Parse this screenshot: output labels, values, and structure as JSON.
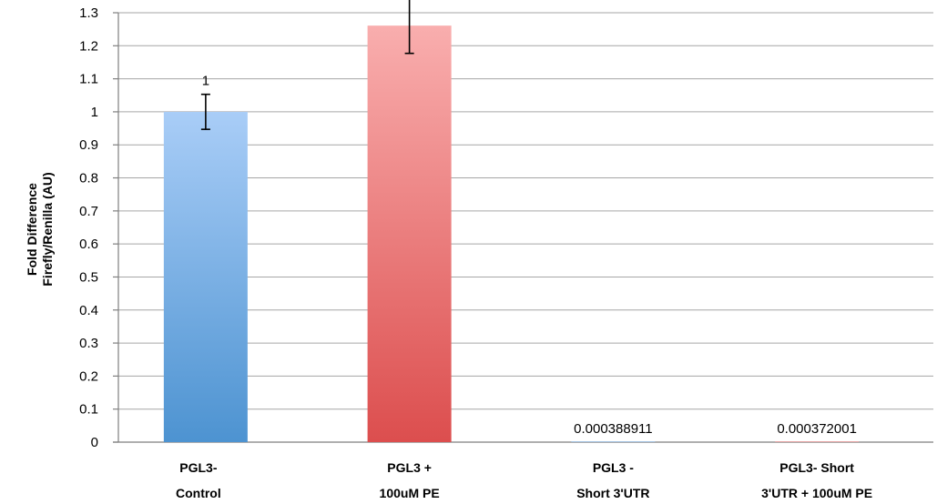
{
  "chart_data": {
    "type": "bar",
    "categories": [
      [
        "PGL3-",
        "Control"
      ],
      [
        "PGL3 +",
        "100uM PE"
      ],
      [
        "PGL3 -",
        "Short 3'UTR"
      ],
      [
        "PGL3- Short",
        "3'UTR + 100uM PE"
      ]
    ],
    "values": [
      1,
      1.261000418,
      0.000388911,
      0.000372001
    ],
    "value_labels": [
      "1",
      "1.261000418",
      "0.000388911",
      "0.000372001"
    ],
    "error": [
      0.053,
      0.084,
      0,
      0
    ],
    "ylabel": [
      "Fold Difference",
      "Firefly/Renilla (AU)"
    ],
    "ylim": [
      0,
      1.3
    ],
    "yticks": [
      "0",
      "0.1",
      "0.2",
      "0.3",
      "0.4",
      "0.5",
      "0.6",
      "0.7",
      "0.8",
      "0.9",
      "1",
      "1.1",
      "1.2",
      "1.3"
    ],
    "grid": true,
    "colors": {
      "bar_fills": [
        [
          "#a9cdf7",
          "#4d93d1"
        ],
        [
          "#f9aeae",
          "#dc4e4e"
        ],
        [
          "#a9cdf7",
          "#4d93d1"
        ],
        [
          "#f9aeae",
          "#dc4e4e"
        ]
      ],
      "grid": "#a6a6a6",
      "axis": "#7f7f7f"
    }
  }
}
